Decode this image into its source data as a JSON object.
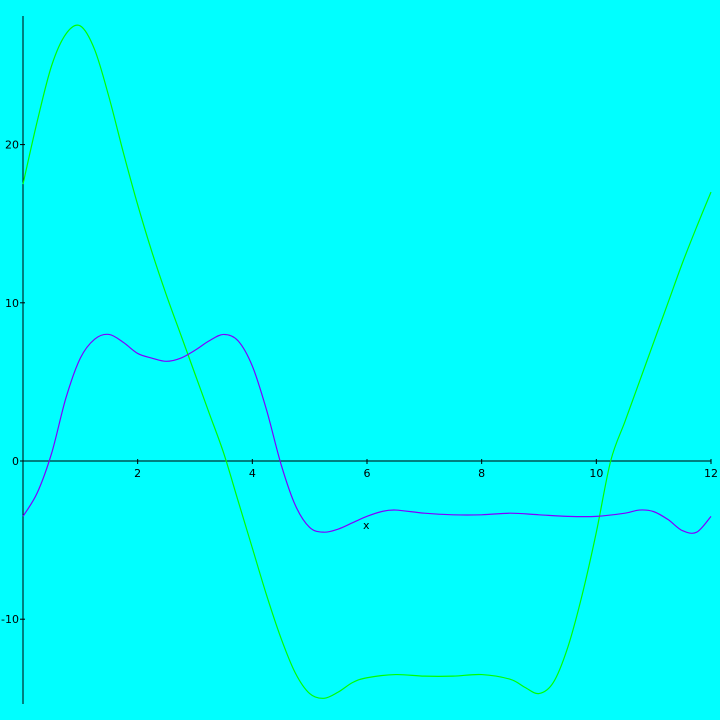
{
  "chart_data": {
    "type": "line",
    "title": "",
    "xlabel": "x",
    "ylabel": "",
    "xlim": [
      0,
      12
    ],
    "ylim": [
      -15.5,
      28
    ],
    "grid": false,
    "legend": "none",
    "background": "#00ffff",
    "x_ticks": [
      2,
      4,
      6,
      8,
      10,
      12
    ],
    "x_tick_labels": [
      "2",
      "4",
      "6",
      "8",
      "10",
      "12"
    ],
    "y_ticks": [
      -10,
      0,
      10,
      20
    ],
    "y_tick_labels": [
      "-10",
      "0",
      "10",
      "20"
    ],
    "series": [
      {
        "color": "#00ff00",
        "x": [
          0,
          0.25,
          0.5,
          0.75,
          1.0,
          1.25,
          1.5,
          1.75,
          2.0,
          2.25,
          2.5,
          2.75,
          3.0,
          3.25,
          3.5,
          3.75,
          4.0,
          4.25,
          4.5,
          4.75,
          5.0,
          5.25,
          5.5,
          5.75,
          6.0,
          6.5,
          7.0,
          7.5,
          8.0,
          8.5,
          8.75,
          9.0,
          9.25,
          9.5,
          9.75,
          10.0,
          10.25,
          10.5,
          10.75,
          11.0,
          11.25,
          11.5,
          11.75,
          12.0
        ],
        "y": [
          17.5,
          21.5,
          25.0,
          27.0,
          27.5,
          26.0,
          23.0,
          19.5,
          16.2,
          13.2,
          10.5,
          8.0,
          5.5,
          3.0,
          0.5,
          -2.5,
          -5.5,
          -8.5,
          -11.2,
          -13.4,
          -14.7,
          -15.0,
          -14.6,
          -14.0,
          -13.7,
          -13.5,
          -13.6,
          -13.6,
          -13.5,
          -13.8,
          -14.3,
          -14.7,
          -14.0,
          -11.8,
          -8.5,
          -4.5,
          0.0,
          2.5,
          5.0,
          7.5,
          10.0,
          12.5,
          14.8,
          17.0
        ]
      },
      {
        "color": "#8000ff",
        "x": [
          0,
          0.25,
          0.5,
          0.75,
          1.0,
          1.25,
          1.5,
          1.75,
          2.0,
          2.25,
          2.5,
          2.75,
          3.0,
          3.25,
          3.5,
          3.75,
          4.0,
          4.25,
          4.5,
          4.75,
          5.0,
          5.25,
          5.5,
          5.75,
          6.0,
          6.25,
          6.5,
          7.0,
          7.5,
          8.0,
          8.5,
          9.0,
          9.5,
          10.0,
          10.5,
          10.75,
          11.0,
          11.25,
          11.5,
          11.75,
          12.0
        ],
        "y": [
          -3.5,
          -2.0,
          0.5,
          4.0,
          6.5,
          7.7,
          8.0,
          7.5,
          6.8,
          6.5,
          6.3,
          6.5,
          7.0,
          7.6,
          8.0,
          7.6,
          6.0,
          3.2,
          -0.2,
          -2.8,
          -4.2,
          -4.5,
          -4.3,
          -3.9,
          -3.5,
          -3.2,
          -3.1,
          -3.3,
          -3.4,
          -3.4,
          -3.3,
          -3.4,
          -3.5,
          -3.5,
          -3.3,
          -3.1,
          -3.2,
          -3.7,
          -4.4,
          -4.5,
          -3.5
        ]
      }
    ]
  }
}
